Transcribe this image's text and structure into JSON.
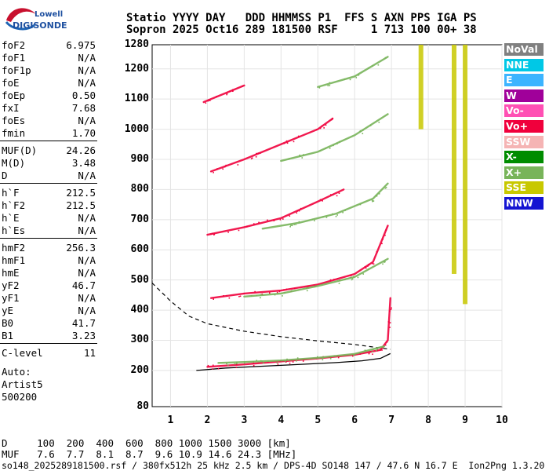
{
  "logo": {
    "line1": "Lowell",
    "line2": "DIGISONDE"
  },
  "header": {
    "line1": "Statio YYYY DAY   DDD HHMMSS P1  FFS S AXN PPS IGA PS",
    "line2": "Sopron 2025 Oct16 289 181500 RSF     1 713 100 00+ 38"
  },
  "params_group1": [
    {
      "label": "foF2",
      "value": "6.975"
    },
    {
      "label": "foF1",
      "value": "N/A"
    },
    {
      "label": "foF1p",
      "value": "N/A"
    },
    {
      "label": "foE",
      "value": "N/A"
    },
    {
      "label": "foEp",
      "value": "0.50"
    },
    {
      "label": "fxI",
      "value": "7.68"
    },
    {
      "label": "foEs",
      "value": "N/A"
    },
    {
      "label": "fmin",
      "value": "1.70"
    }
  ],
  "params_group2": [
    {
      "label": "MUF(D)",
      "value": "24.26"
    },
    {
      "label": "M(D)",
      "value": "3.48"
    },
    {
      "label": "D",
      "value": "N/A"
    }
  ],
  "params_group3": [
    {
      "label": "h`F",
      "value": "212.5"
    },
    {
      "label": "h`F2",
      "value": "212.5"
    },
    {
      "label": "h`E",
      "value": "N/A"
    },
    {
      "label": "h`Es",
      "value": "N/A"
    }
  ],
  "params_group4": [
    {
      "label": "hmF2",
      "value": "256.3"
    },
    {
      "label": "hmF1",
      "value": "N/A"
    },
    {
      "label": "hmE",
      "value": "N/A"
    },
    {
      "label": "yF2",
      "value": "46.7"
    },
    {
      "label": "yF1",
      "value": "N/A"
    },
    {
      "label": "yE",
      "value": "N/A"
    },
    {
      "label": "B0",
      "value": "41.7"
    },
    {
      "label": "B1",
      "value": "3.23"
    }
  ],
  "params_group5": [
    {
      "label": "C-level",
      "value": "11"
    }
  ],
  "auto_block": {
    "line1": "Auto:",
    "line2": "Artist5",
    "line3": "500200"
  },
  "legend": [
    {
      "label": "NoVal",
      "color": "#808080"
    },
    {
      "label": "NNE",
      "color": "#00c8e6"
    },
    {
      "label": "E",
      "color": "#3cb4ff"
    },
    {
      "label": "W",
      "color": "#a0009a"
    },
    {
      "label": "Vo-",
      "color": "#ff50b4"
    },
    {
      "label": "Vo+",
      "color": "#f0003c"
    },
    {
      "label": "SSW",
      "color": "#f5b4b4"
    },
    {
      "label": "X-",
      "color": "#008c00"
    },
    {
      "label": "X+",
      "color": "#78b45a"
    },
    {
      "label": "SSE",
      "color": "#c8c800"
    },
    {
      "label": "NNW",
      "color": "#1414d2"
    }
  ],
  "bottom": {
    "d_row": "D     100  200  400  600  800 1000 1500 3000 [km]",
    "muf_row": "MUF   7.6  7.7  8.1  8.7  9.6 10.9 14.6 24.3 [MHz]",
    "footer": "so148_2025289181500.rsf / 380fx512h 25 kHz 2.5 km / DPS-4D SO148 147 / 47.6 N 16.7 E  Ion2Png 1.3.20"
  },
  "chart_data": {
    "type": "scatter",
    "title": "",
    "xlabel": "",
    "ylabel": "",
    "xlim": [
      0.5,
      10
    ],
    "ylim": [
      80,
      1280
    ],
    "x_ticks": [
      1,
      2,
      3,
      4,
      5,
      6,
      7,
      8,
      9,
      10
    ],
    "y_ticks": [
      80,
      200,
      300,
      400,
      500,
      600,
      700,
      800,
      900,
      1000,
      1100,
      1200,
      1280
    ],
    "grid": true,
    "series": [
      {
        "name": "Vo+",
        "color": "#f0003c",
        "trace": "F2 O-mode 1st hop",
        "x": [
          2.0,
          3.0,
          4.0,
          5.0,
          6.0,
          6.7,
          6.9,
          6.97
        ],
        "y": [
          212,
          220,
          230,
          240,
          252,
          268,
          300,
          440
        ]
      },
      {
        "name": "Vo+",
        "color": "#f0003c",
        "trace": "F2 O-mode 2nd hop",
        "x": [
          2.1,
          3.0,
          4.0,
          5.0,
          6.0,
          6.5,
          6.9
        ],
        "y": [
          440,
          455,
          465,
          485,
          520,
          560,
          680
        ]
      },
      {
        "name": "Vo+",
        "color": "#f0003c",
        "trace": "F2 O-mode 3rd hop",
        "x": [
          2.0,
          3.0,
          4.0,
          5.0,
          5.7
        ],
        "y": [
          650,
          675,
          705,
          760,
          800
        ]
      },
      {
        "name": "Vo+",
        "color": "#f0003c",
        "trace": "F2 O-mode 4th hop",
        "x": [
          2.1,
          3.0,
          3.5,
          5.0,
          5.4
        ],
        "y": [
          860,
          900,
          925,
          1000,
          1035
        ]
      },
      {
        "name": "Vo+",
        "color": "#f0003c",
        "trace": "F2 O-mode 5th hop",
        "x": [
          1.9,
          2.5,
          3.0
        ],
        "y": [
          1090,
          1120,
          1145
        ]
      },
      {
        "name": "X+",
        "color": "#78b45a",
        "trace": "F2 X-mode 1st hop",
        "x": [
          2.3,
          3.0,
          4.0,
          5.0,
          6.0,
          6.8
        ],
        "y": [
          225,
          228,
          233,
          242,
          255,
          280
        ]
      },
      {
        "name": "X+",
        "color": "#78b45a",
        "trace": "F2 X-mode 2nd hop",
        "x": [
          3.0,
          4.0,
          5.0,
          6.0,
          6.9
        ],
        "y": [
          445,
          455,
          480,
          510,
          570
        ]
      },
      {
        "name": "X+",
        "color": "#78b45a",
        "trace": "F2 X-mode 3rd hop",
        "x": [
          3.5,
          4.5,
          5.5,
          6.5,
          6.9
        ],
        "y": [
          670,
          690,
          720,
          770,
          820
        ]
      },
      {
        "name": "X+",
        "color": "#78b45a",
        "trace": "F2 X-mode 4th hop",
        "x": [
          4.0,
          5.0,
          6.0,
          6.9
        ],
        "y": [
          895,
          925,
          980,
          1050
        ]
      },
      {
        "name": "X+",
        "color": "#78b45a",
        "trace": "F2 X-mode 5th hop",
        "x": [
          5.0,
          6.0,
          6.9
        ],
        "y": [
          1140,
          1175,
          1240
        ]
      },
      {
        "name": "SSE",
        "color": "#c8c800",
        "trace": "interference 7.8 MHz",
        "x": [
          7.8,
          7.8
        ],
        "y": [
          1000,
          1280
        ]
      },
      {
        "name": "SSE",
        "color": "#c8c800",
        "trace": "interference 8.7 MHz",
        "x": [
          8.7,
          8.7
        ],
        "y": [
          520,
          1280
        ]
      },
      {
        "name": "SSE",
        "color": "#c8c800",
        "trace": "interference 9.0 MHz",
        "x": [
          9.0,
          9.0
        ],
        "y": [
          420,
          1280
        ]
      }
    ],
    "profile": {
      "true_height_x": [
        1.7,
        2.5,
        3.5,
        4.5,
        5.5,
        6.2,
        6.7,
        6.97
      ],
      "true_height_y": [
        200,
        208,
        214,
        220,
        226,
        232,
        240,
        256
      ],
      "dashed_x": [
        0.5,
        1.0,
        1.5,
        2.0,
        3.0,
        4.0,
        5.0,
        6.0,
        6.97
      ],
      "dashed_y": [
        490,
        430,
        380,
        355,
        330,
        312,
        298,
        286,
        270
      ]
    }
  }
}
